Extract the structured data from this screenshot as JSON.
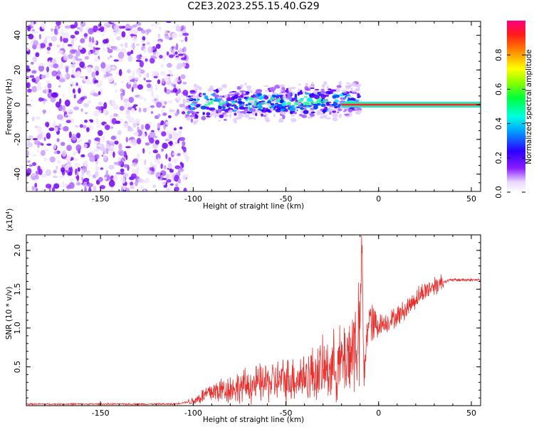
{
  "figure": {
    "title": "C2E3.2023.255.15.40.G29"
  },
  "chart_data": [
    {
      "type": "heatmap",
      "xlabel": "Height of straight line (km)",
      "ylabel": "Frequency (Hz)",
      "xlim": [
        -190,
        55
      ],
      "ylim": [
        -50,
        48
      ],
      "x_ticks": [
        -150,
        -100,
        -50,
        0,
        50
      ],
      "y_ticks": [
        -40,
        -20,
        0,
        20,
        40
      ],
      "colorbar": {
        "label": "Normalized spectral amplitude",
        "range": [
          0.0,
          1.0
        ],
        "ticks": [
          "0.0",
          "0.2",
          "0.4",
          "0.6",
          "0.8"
        ],
        "colormap": "rainbow (white, violet, blue, cyan, green, yellow, red)"
      },
      "regions": [
        {
          "description": "scattered noise",
          "x": [
            -190,
            -103
          ],
          "y": [
            -50,
            48
          ],
          "amplitude": 0.08
        },
        {
          "description": "signal band",
          "x": [
            -103,
            -10
          ],
          "y": [
            -8,
            10
          ],
          "amplitude": 0.25
        },
        {
          "description": "narrow tone",
          "x": [
            0,
            55
          ],
          "y": [
            0,
            0
          ],
          "amplitude": 0.85
        }
      ]
    },
    {
      "type": "line",
      "xlabel": "Height of straight line (km)",
      "ylabel": "SNR (10 * v/v)",
      "y_multiplier": "(x10",
      "y_multiplier_exp": "4",
      "y_multiplier_close": ")",
      "xlim": [
        -190,
        55
      ],
      "ylim": [
        0,
        2.2
      ],
      "x_ticks": [
        -150,
        -100,
        -50,
        0,
        50
      ],
      "y_ticks": [
        0.5,
        1.0,
        1.5,
        2.0
      ],
      "y_tick_labels": [
        "0.5",
        "1.0",
        "1.5",
        "2.0"
      ],
      "series_color": "#e8302e",
      "x": [
        -190,
        -150,
        -110,
        -100,
        -95,
        -90,
        -80,
        -70,
        -60,
        -50,
        -40,
        -30,
        -20,
        -15,
        -12,
        -10,
        -9,
        -8,
        -7,
        -6,
        -5,
        -3,
        0,
        5,
        10,
        15,
        20,
        25,
        30,
        35,
        40,
        45,
        50,
        55
      ],
      "y": [
        0.02,
        0.02,
        0.02,
        0.06,
        0.12,
        0.18,
        0.22,
        0.26,
        0.3,
        0.33,
        0.38,
        0.45,
        0.55,
        0.7,
        0.85,
        1.0,
        2.15,
        0.35,
        0.6,
        1.05,
        1.15,
        1.0,
        1.05,
        1.08,
        1.15,
        1.25,
        1.38,
        1.48,
        1.55,
        1.6,
        1.62,
        1.62,
        1.62,
        1.62
      ]
    }
  ]
}
